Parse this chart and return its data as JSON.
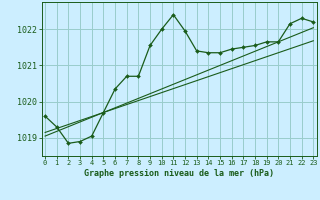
{
  "hours": [
    0,
    1,
    2,
    3,
    4,
    5,
    6,
    7,
    8,
    9,
    10,
    11,
    12,
    13,
    14,
    15,
    16,
    17,
    18,
    19,
    20,
    21,
    22,
    23
  ],
  "pressure": [
    1019.6,
    1019.3,
    1018.85,
    1018.9,
    1019.05,
    1019.7,
    1020.35,
    1020.7,
    1020.7,
    1021.55,
    1022.0,
    1022.4,
    1021.95,
    1021.4,
    1021.35,
    1021.35,
    1021.45,
    1021.5,
    1021.55,
    1021.65,
    1021.65,
    1022.15,
    1022.3,
    1022.2
  ],
  "trend1": [
    1019.05,
    1019.18,
    1019.31,
    1019.44,
    1019.57,
    1019.7,
    1019.83,
    1019.96,
    1020.09,
    1020.22,
    1020.35,
    1020.48,
    1020.61,
    1020.74,
    1020.87,
    1021.0,
    1021.13,
    1021.26,
    1021.39,
    1021.52,
    1021.65,
    1021.78,
    1021.91,
    1022.04
  ],
  "trend2": [
    1019.15,
    1019.26,
    1019.37,
    1019.48,
    1019.59,
    1019.7,
    1019.81,
    1019.92,
    1020.03,
    1020.14,
    1020.25,
    1020.36,
    1020.47,
    1020.58,
    1020.69,
    1020.8,
    1020.91,
    1021.02,
    1021.13,
    1021.24,
    1021.35,
    1021.46,
    1021.57,
    1021.68
  ],
  "line_color": "#1a5c1a",
  "bg_color": "#cceeff",
  "grid_color": "#99cccc",
  "xlabel": "Graphe pression niveau de la mer (hPa)",
  "ylim": [
    1018.5,
    1022.75
  ],
  "yticks": [
    1019,
    1020,
    1021,
    1022
  ],
  "xticks": [
    0,
    1,
    2,
    3,
    4,
    5,
    6,
    7,
    8,
    9,
    10,
    11,
    12,
    13,
    14,
    15,
    16,
    17,
    18,
    19,
    20,
    21,
    22,
    23
  ]
}
